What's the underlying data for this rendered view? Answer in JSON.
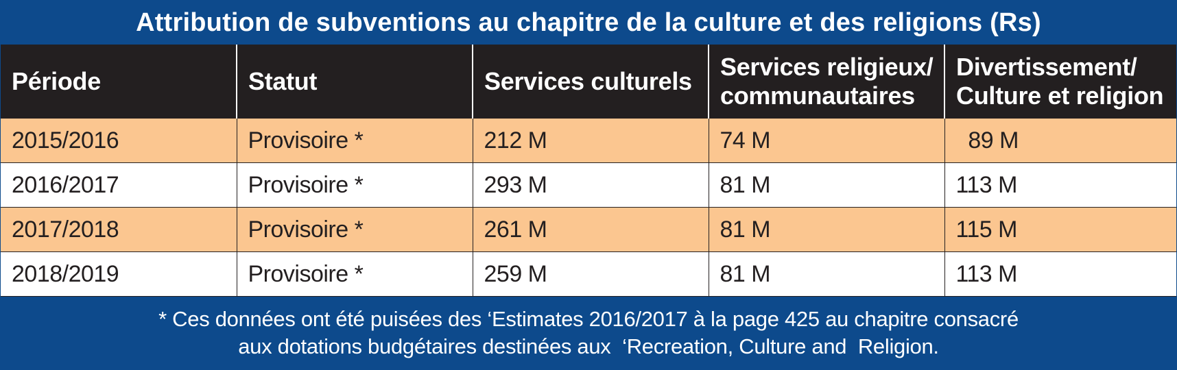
{
  "title": "Attribution de subventions au chapitre de la culture et des religions (Rs)",
  "colors": {
    "title_bg": "#0d4a8c",
    "header_bg": "#231f20",
    "row_highlight": "#fbc690",
    "row_plain": "#ffffff",
    "note_bg": "#0d4a8c"
  },
  "table": {
    "headers": [
      "Période",
      "Statut",
      "Services culturels",
      "Services religieux/\ncommunautaires",
      "Divertissement/\nCulture et religion"
    ],
    "rows": [
      [
        "2015/2016",
        "Provisoire *",
        "212 M",
        "74 M",
        "  89 M"
      ],
      [
        "2016/2017",
        "Provisoire *",
        "293 M",
        "81 M",
        "113 M"
      ],
      [
        "2017/2018",
        "Provisoire *",
        "261 M",
        "81 M",
        "115 M"
      ],
      [
        "2018/2019",
        "Provisoire *",
        "259 M",
        "81 M",
        "113 M"
      ]
    ]
  },
  "footnote": {
    "line1": "* Ces données ont été puisées des ‘Estimates 2016/2017 à la page 425 au chapitre consacré",
    "line2": "aux dotations budgétaires destinées aux  ‘Recreation, Culture and  Religion."
  }
}
